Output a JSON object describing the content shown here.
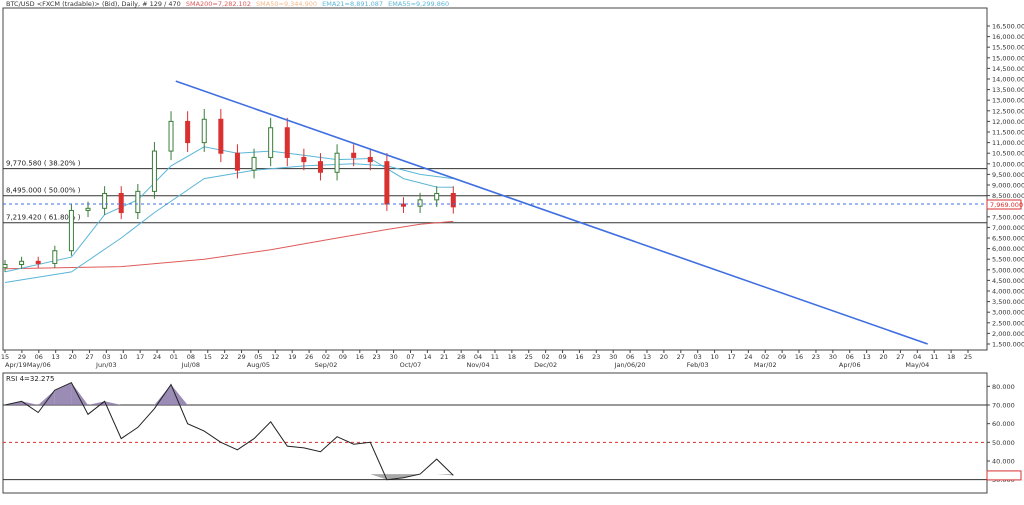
{
  "header": {
    "symbol": "BTC/USD <FXCM (tradable)> (Bid), Daily, # 129 / 470",
    "sma200": "SMA200=7,282.102",
    "sma50": "SMA50=9,344.900",
    "ema21": "EMA21=8,891.087",
    "ema55": "EMA55=9,299.860"
  },
  "colors": {
    "sma200": "#e05a5a",
    "sma50": "#f4b98a",
    "ema21": "#5bb6d8",
    "ema55": "#5bb6d8",
    "trendline": "#3f6fe0",
    "bull": "#3a7d3a",
    "bear": "#d93030",
    "rsi_fill": "#8a78a8",
    "price_tag": "#d93030"
  },
  "price_axis": {
    "labels": [
      "16,500.000",
      "16,000.000",
      "15,500.000",
      "15,000.000",
      "14,500.000",
      "14,000.000",
      "13,500.000",
      "13,000.000",
      "12,500.000",
      "12,000.000",
      "11,500.000",
      "11,000.000",
      "10,500.000",
      "10,000.000",
      "9,500.000",
      "9,000.000",
      "8,500.000",
      "7,500.000",
      "7,000.000",
      "6,500.000",
      "6,000.000",
      "5,500.000",
      "5,000.000",
      "4,500.000",
      "4,000.000",
      "3,500.000",
      "3,000.000",
      "2,500.000",
      "2,000.000",
      "1,500.000"
    ],
    "current_price": "7,969.000"
  },
  "date_axis": {
    "days": [
      "15",
      "29",
      "06",
      "13",
      "20",
      "27",
      "03",
      "10",
      "17",
      "24",
      "01",
      "08",
      "15",
      "22",
      "29",
      "05",
      "12",
      "19",
      "26",
      "02",
      "09",
      "16",
      "23",
      "30",
      "07",
      "14",
      "21",
      "28",
      "04",
      "11",
      "18",
      "25",
      "02",
      "09",
      "16",
      "23",
      "30",
      "06",
      "13",
      "20",
      "27",
      "03",
      "10",
      "17",
      "24",
      "02",
      "09",
      "16",
      "23",
      "30",
      "06",
      "13",
      "20",
      "27",
      "04",
      "11",
      "18",
      "25"
    ],
    "months": [
      "Apr/19",
      "May/06",
      "Jun/03",
      "Jul/08",
      "Aug/05",
      "Sep/02",
      "Oct/07",
      "Nov/04",
      "Dec/02",
      "Jan/06/20",
      "Feb/03",
      "Mar/02",
      "Apr/06",
      "May/04"
    ]
  },
  "fib_levels": [
    {
      "label": "9,770.580 ( 38.20% )",
      "value": 9770.58
    },
    {
      "label": "8,495.000 ( 50.00% )",
      "value": 8495.0
    },
    {
      "label": "7,219.420 ( 61.80% )",
      "value": 7219.42
    }
  ],
  "rsi": {
    "label": "RSI 4=32.275",
    "axis_labels": [
      "80.000",
      "70.000",
      "60.000",
      "50.000",
      "40.000",
      "32.275",
      "30.000"
    ],
    "overbought": 70,
    "midline": 50,
    "oversold": 30
  },
  "chart_data": {
    "type": "candlestick",
    "y_range": [
      1500,
      16500
    ],
    "x_start": "2019-04-15",
    "x_end": "2020-05-25",
    "candles": [
      {
        "date": "2019-04-15",
        "open": 5100,
        "close": 5250
      },
      {
        "date": "2019-04-22",
        "open": 5250,
        "close": 5400
      },
      {
        "date": "2019-04-29",
        "open": 5400,
        "close": 5300
      },
      {
        "date": "2019-05-06",
        "open": 5300,
        "close": 5900
      },
      {
        "date": "2019-05-13",
        "open": 5900,
        "close": 7800
      },
      {
        "date": "2019-05-20",
        "open": 7800,
        "close": 7900
      },
      {
        "date": "2019-05-27",
        "open": 7900,
        "close": 8600
      },
      {
        "date": "2019-06-03",
        "open": 8600,
        "close": 7700
      },
      {
        "date": "2019-06-10",
        "open": 7700,
        "close": 8700
      },
      {
        "date": "2019-06-17",
        "open": 8700,
        "close": 10600
      },
      {
        "date": "2019-06-24",
        "open": 10600,
        "close": 12000
      },
      {
        "date": "2019-07-01",
        "open": 12000,
        "close": 11000
      },
      {
        "date": "2019-07-08",
        "open": 11000,
        "close": 12100
      },
      {
        "date": "2019-07-15",
        "open": 12100,
        "close": 10500
      },
      {
        "date": "2019-07-22",
        "open": 10500,
        "close": 9700
      },
      {
        "date": "2019-07-29",
        "open": 9700,
        "close": 10300
      },
      {
        "date": "2019-08-05",
        "open": 10300,
        "close": 11700
      },
      {
        "date": "2019-08-12",
        "open": 11700,
        "close": 10300
      },
      {
        "date": "2019-08-19",
        "open": 10300,
        "close": 10100
      },
      {
        "date": "2019-08-26",
        "open": 10100,
        "close": 9600
      },
      {
        "date": "2019-09-02",
        "open": 9600,
        "close": 10500
      },
      {
        "date": "2019-09-09",
        "open": 10500,
        "close": 10300
      },
      {
        "date": "2019-09-16",
        "open": 10300,
        "close": 10100
      },
      {
        "date": "2019-09-23",
        "open": 10100,
        "close": 8100
      },
      {
        "date": "2019-09-30",
        "open": 8100,
        "close": 8000
      },
      {
        "date": "2019-10-07",
        "open": 8000,
        "close": 8300
      },
      {
        "date": "2019-10-14",
        "open": 8300,
        "close": 8600
      },
      {
        "date": "2019-10-21",
        "open": 8600,
        "close": 7969
      }
    ],
    "series": [
      {
        "name": "SMA200",
        "values": [
          [
            "2019-04-15",
            5050
          ],
          [
            "2019-06-03",
            5150
          ],
          [
            "2019-07-08",
            5500
          ],
          [
            "2019-08-05",
            5950
          ],
          [
            "2019-09-02",
            6500
          ],
          [
            "2019-09-23",
            6900
          ],
          [
            "2019-10-07",
            7150
          ],
          [
            "2019-10-21",
            7282
          ]
        ]
      },
      {
        "name": "EMA21",
        "values": [
          [
            "2019-04-15",
            4900
          ],
          [
            "2019-05-13",
            5600
          ],
          [
            "2019-05-27",
            7600
          ],
          [
            "2019-06-10",
            8300
          ],
          [
            "2019-06-24",
            9900
          ],
          [
            "2019-07-08",
            10800
          ],
          [
            "2019-07-22",
            10500
          ],
          [
            "2019-08-05",
            10600
          ],
          [
            "2019-08-19",
            10400
          ],
          [
            "2019-09-02",
            10200
          ],
          [
            "2019-09-16",
            10250
          ],
          [
            "2019-09-30",
            9300
          ],
          [
            "2019-10-14",
            8900
          ],
          [
            "2019-10-21",
            8891
          ]
        ]
      },
      {
        "name": "EMA55",
        "values": [
          [
            "2019-04-15",
            4400
          ],
          [
            "2019-05-13",
            4900
          ],
          [
            "2019-06-03",
            6500
          ],
          [
            "2019-06-17",
            7700
          ],
          [
            "2019-07-08",
            9300
          ],
          [
            "2019-07-29",
            9700
          ],
          [
            "2019-08-19",
            9900
          ],
          [
            "2019-09-09",
            10000
          ],
          [
            "2019-09-23",
            9900
          ],
          [
            "2019-10-07",
            9500
          ],
          [
            "2019-10-21",
            9300
          ]
        ]
      }
    ],
    "trendline": {
      "from": [
        "2019-06-26",
        13900
      ],
      "to": [
        "2020-05-08",
        1500
      ]
    },
    "rsi_values": [
      [
        "2019-04-15",
        70
      ],
      [
        "2019-04-22",
        72
      ],
      [
        "2019-04-29",
        66
      ],
      [
        "2019-05-06",
        78
      ],
      [
        "2019-05-13",
        82
      ],
      [
        "2019-05-20",
        65
      ],
      [
        "2019-05-27",
        72
      ],
      [
        "2019-06-03",
        52
      ],
      [
        "2019-06-10",
        58
      ],
      [
        "2019-06-17",
        68
      ],
      [
        "2019-06-24",
        81
      ],
      [
        "2019-07-01",
        60
      ],
      [
        "2019-07-08",
        56
      ],
      [
        "2019-07-15",
        50
      ],
      [
        "2019-07-22",
        46
      ],
      [
        "2019-07-29",
        52
      ],
      [
        "2019-08-05",
        61
      ],
      [
        "2019-08-12",
        48
      ],
      [
        "2019-08-19",
        47
      ],
      [
        "2019-08-26",
        45
      ],
      [
        "2019-09-02",
        53
      ],
      [
        "2019-09-09",
        49
      ],
      [
        "2019-09-16",
        50
      ],
      [
        "2019-09-23",
        30
      ],
      [
        "2019-09-30",
        31
      ],
      [
        "2019-10-07",
        33
      ],
      [
        "2019-10-14",
        41
      ],
      [
        "2019-10-21",
        32.275
      ]
    ]
  }
}
